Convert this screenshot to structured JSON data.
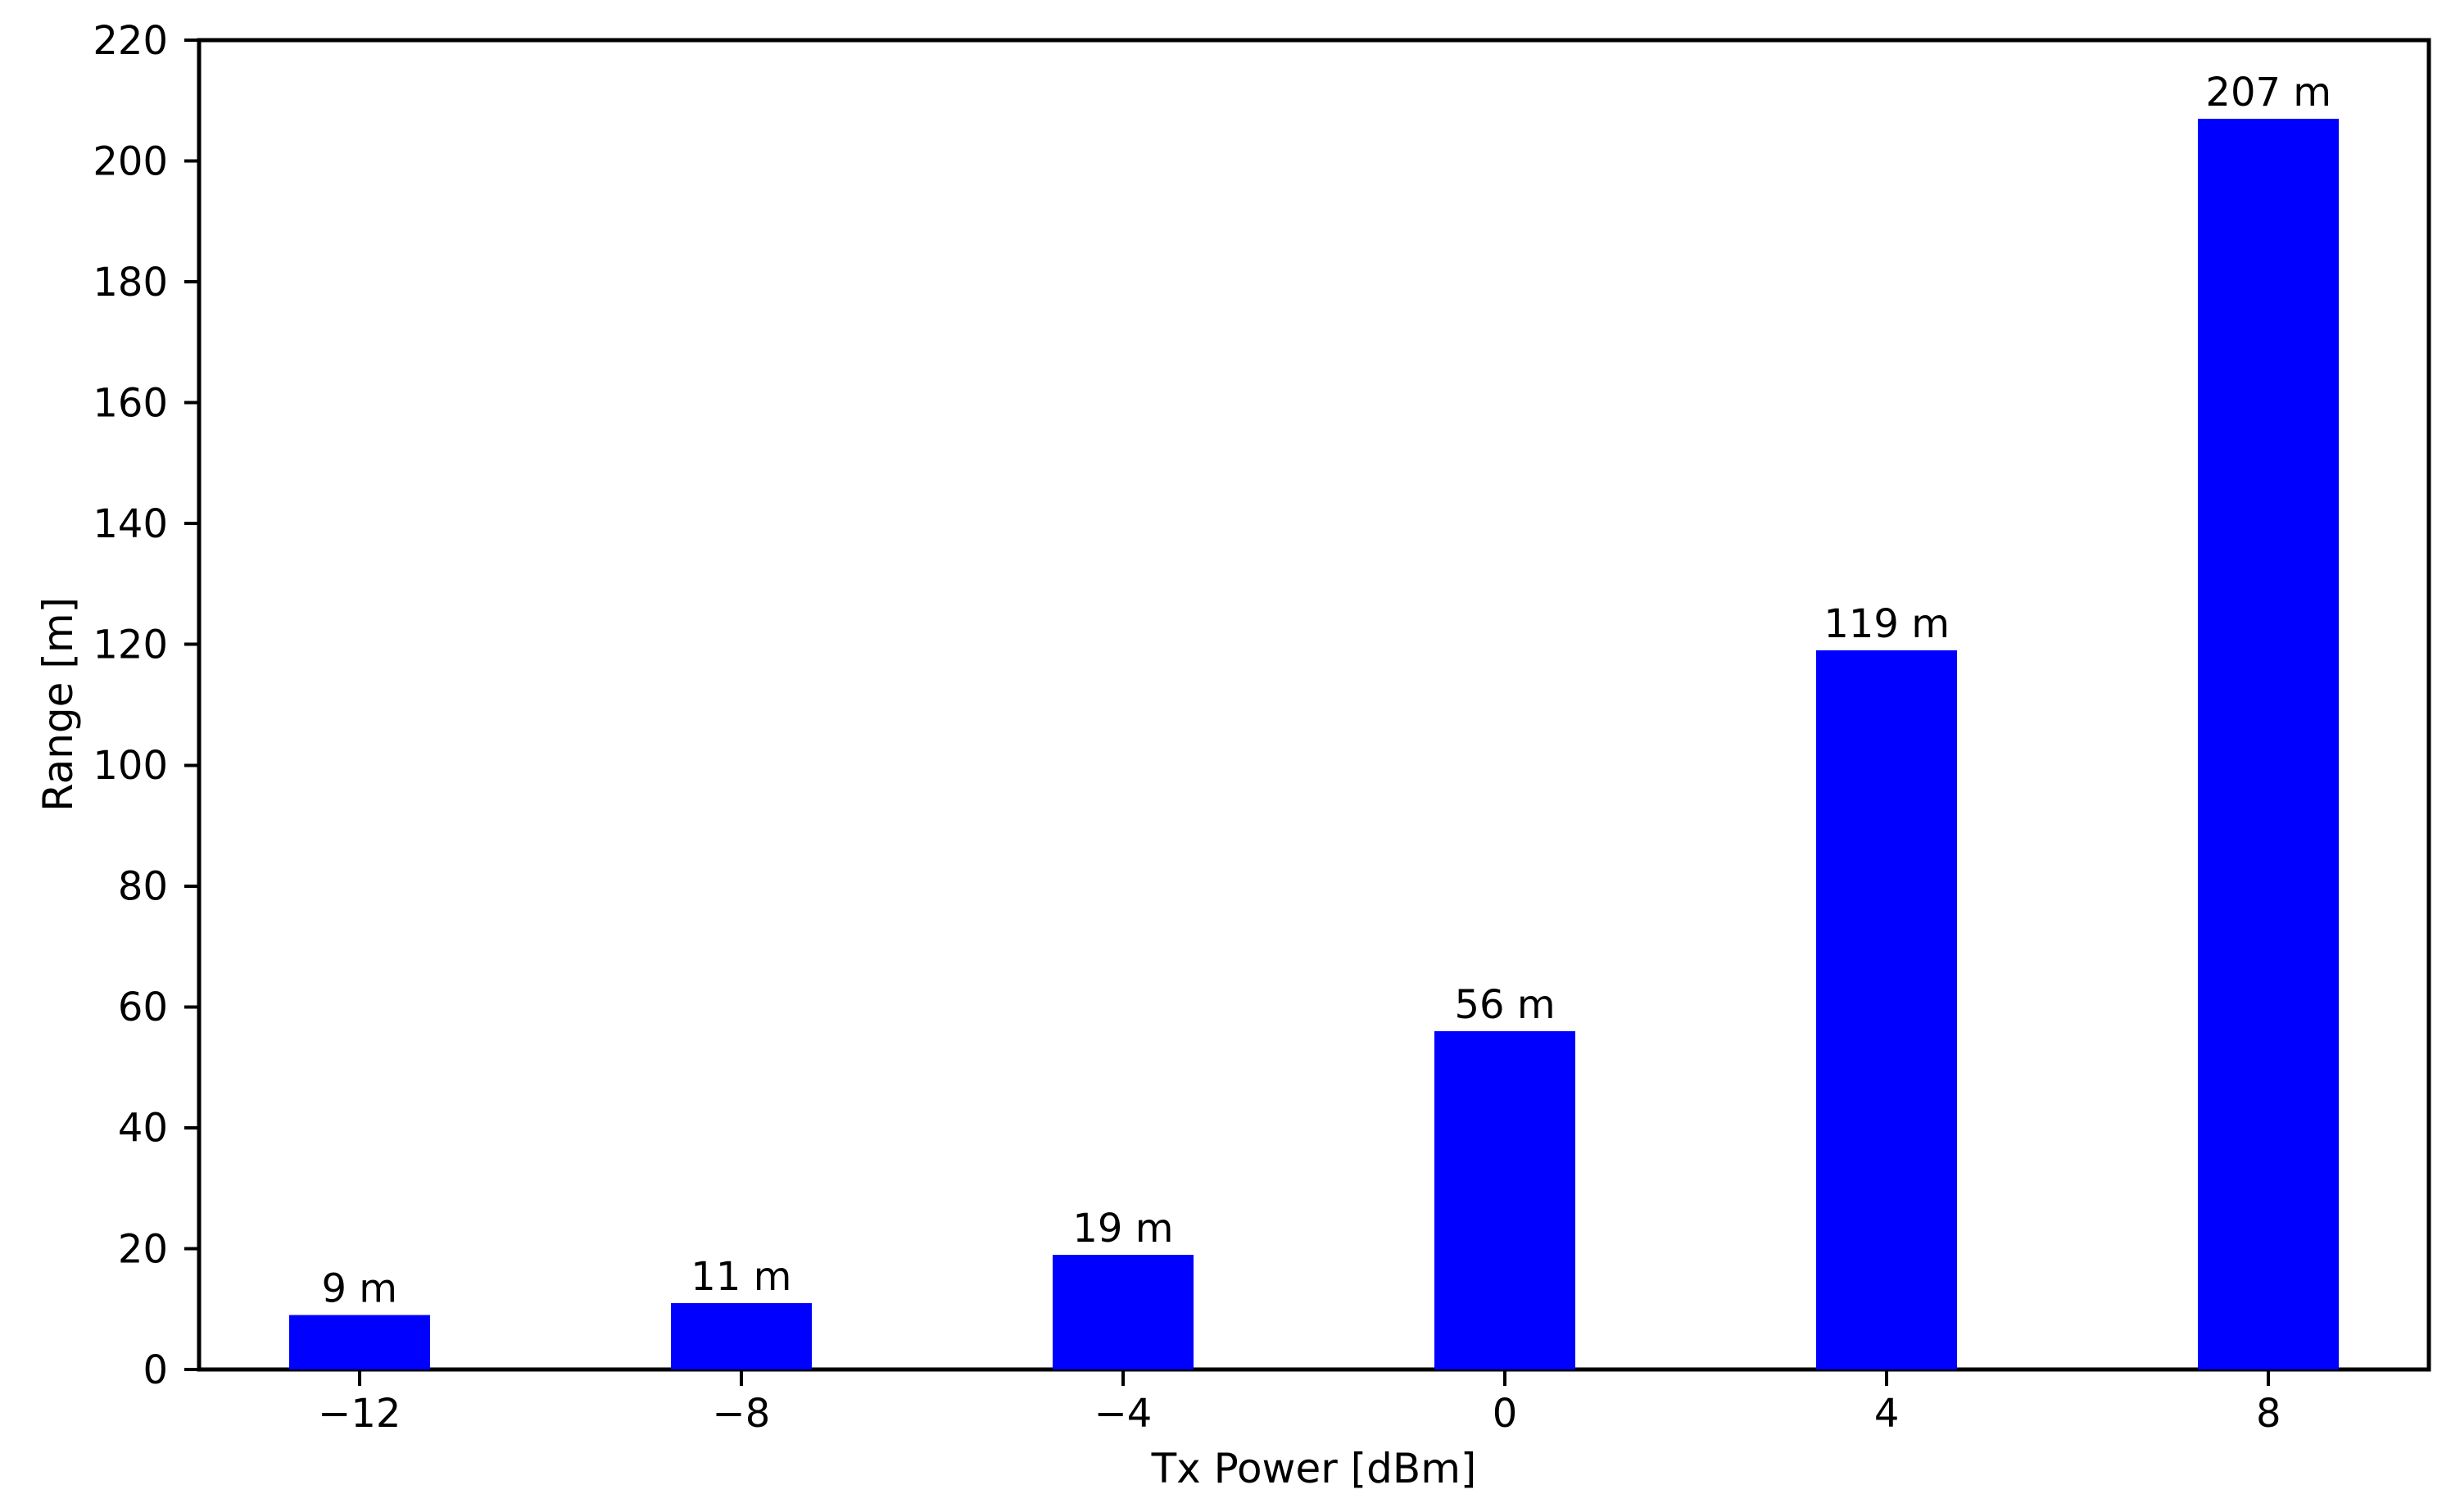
{
  "figure": {
    "background": "#ffffff",
    "text_color": "#000000",
    "spine_color": "#000000"
  },
  "chart_data": {
    "type": "bar",
    "xlabel": "Tx Power [dBm]",
    "ylabel": "Range [m]",
    "categories": [
      "−12",
      "−8",
      "−4",
      "0",
      "4",
      "8"
    ],
    "values": [
      9,
      11,
      19,
      56,
      119,
      207
    ],
    "bar_labels": [
      "9 m",
      "11 m",
      "19 m",
      "56 m",
      "119 m",
      "207 m"
    ],
    "bar_color": "#0000ff",
    "ylim": [
      0,
      220
    ],
    "ytick_step": 20,
    "grid": false,
    "legend_position": "none"
  }
}
